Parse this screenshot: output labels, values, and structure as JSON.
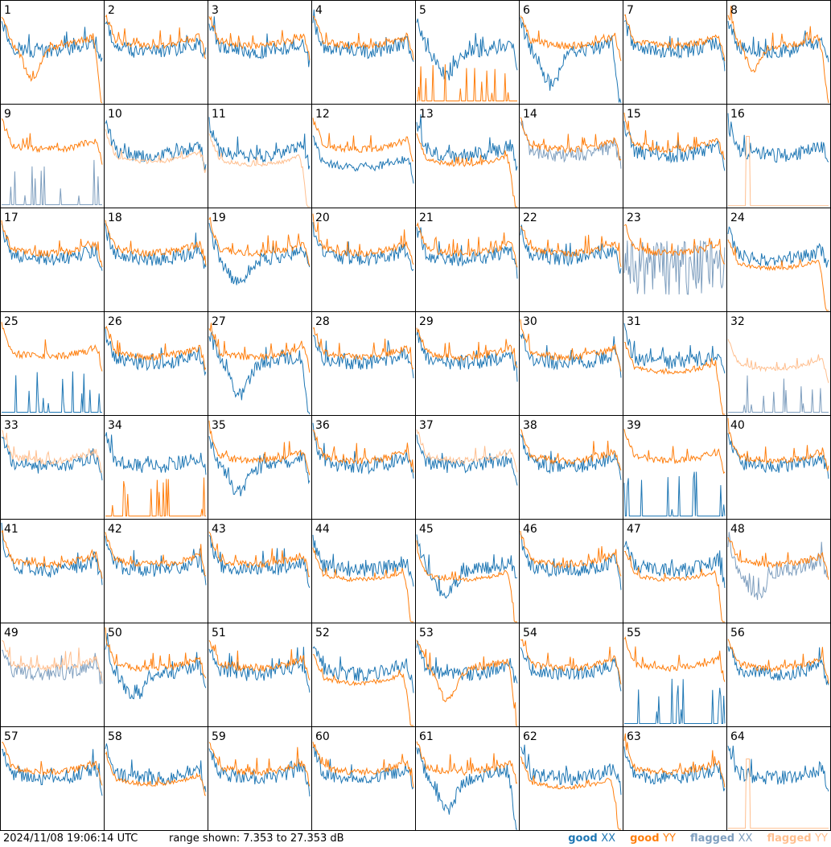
{
  "chart_data": {
    "type": "line",
    "panel_count": 64,
    "panel_labels": [
      "1",
      "2",
      "3",
      "4",
      "5",
      "6",
      "7",
      "8",
      "9",
      "10",
      "11",
      "12",
      "13",
      "14",
      "15",
      "16",
      "17",
      "18",
      "19",
      "20",
      "21",
      "22",
      "23",
      "24",
      "25",
      "26",
      "27",
      "28",
      "29",
      "30",
      "31",
      "32",
      "33",
      "34",
      "35",
      "36",
      "37",
      "38",
      "39",
      "40",
      "41",
      "42",
      "43",
      "44",
      "45",
      "46",
      "47",
      "48",
      "49",
      "50",
      "51",
      "52",
      "53",
      "54",
      "55",
      "56",
      "57",
      "58",
      "59",
      "60",
      "61",
      "62",
      "63",
      "64"
    ],
    "range_db": [
      7.353,
      27.353
    ],
    "timestamp": "2024/11/08 19:06:14 UTC",
    "range_text": "range shown: 7.353 to 27.353 dB",
    "grid": false,
    "legend_placement": "bottom-right",
    "legend": [
      {
        "status": "good",
        "pol": "XX",
        "color": "#1f77b4"
      },
      {
        "status": "good",
        "pol": "YY",
        "color": "#ff7f0e"
      },
      {
        "status": "flagged",
        "pol": "XX",
        "color": "#7f9fbf"
      },
      {
        "status": "flagged",
        "pol": "YY",
        "color": "#ffbf8f"
      }
    ],
    "panels": {
      "1": {
        "xx": {
          "f": "good",
          "s": "normal"
        },
        "yy": {
          "f": "good",
          "s": "dip_high_drop"
        }
      },
      "5": {
        "xx": {
          "f": "good",
          "s": "dip"
        },
        "yy": {
          "f": "good",
          "s": "spikes"
        }
      },
      "6": {
        "xx": {
          "f": "good",
          "s": "dip_high_drop"
        },
        "yy": {
          "f": "good",
          "s": "normal"
        }
      },
      "7": {
        "xx": {
          "f": "good",
          "s": "normal"
        },
        "yy": {
          "f": "good",
          "s": "normal"
        }
      },
      "8": {
        "xx": {
          "f": "good",
          "s": "normal"
        },
        "yy": {
          "f": "good",
          "s": "dip_drop"
        }
      },
      "9": {
        "xx": {
          "f": "flagged",
          "s": "spikes"
        },
        "yy": {
          "f": "good",
          "s": "normal"
        }
      },
      "10": {
        "xx": {
          "f": "good",
          "s": "normal"
        },
        "yy": {
          "f": "flagged",
          "s": "low"
        }
      },
      "11": {
        "xx": {
          "f": "good",
          "s": "normal"
        },
        "yy": {
          "f": "flagged",
          "s": "low_drop"
        }
      },
      "12": {
        "xx": {
          "f": "good",
          "s": "low"
        },
        "yy": {
          "f": "good",
          "s": "normal"
        }
      },
      "13": {
        "xx": {
          "f": "good",
          "s": "normal"
        },
        "yy": {
          "f": "good",
          "s": "low_drop"
        }
      },
      "14": {
        "xx": {
          "f": "flagged",
          "s": "normal"
        },
        "yy": {
          "f": "good",
          "s": "normal"
        }
      },
      "16": {
        "xx": {
          "f": "good",
          "s": "normal"
        },
        "yy": {
          "f": "flagged",
          "s": "flat_low"
        }
      },
      "19": {
        "xx": {
          "f": "good",
          "s": "dip"
        },
        "yy": {
          "f": "good",
          "s": "normal"
        }
      },
      "23": {
        "xx": {
          "f": "flagged",
          "s": "noise"
        },
        "yy": {
          "f": "good",
          "s": "normal"
        }
      },
      "24": {
        "xx": {
          "f": "good",
          "s": "normal"
        },
        "yy": {
          "f": "good",
          "s": "low_drop"
        }
      },
      "25": {
        "xx": {
          "f": "good",
          "s": "spikes"
        },
        "yy": {
          "f": "good",
          "s": "normal"
        }
      },
      "27": {
        "xx": {
          "f": "good",
          "s": "dip_high_drop"
        },
        "yy": {
          "f": "good",
          "s": "normal"
        }
      },
      "31": {
        "xx": {
          "f": "good",
          "s": "normal"
        },
        "yy": {
          "f": "good",
          "s": "low_drop"
        }
      },
      "32": {
        "xx": {
          "f": "flagged",
          "s": "spikes"
        },
        "yy": {
          "f": "flagged",
          "s": "low"
        }
      },
      "33": {
        "xx": {
          "f": "good",
          "s": "normal"
        },
        "yy": {
          "f": "flagged",
          "s": "normal"
        }
      },
      "34": {
        "xx": {
          "f": "good",
          "s": "normal"
        },
        "yy": {
          "f": "good",
          "s": "spikes"
        }
      },
      "35": {
        "xx": {
          "f": "good",
          "s": "dip"
        },
        "yy": {
          "f": "good",
          "s": "normal"
        }
      },
      "37": {
        "xx": {
          "f": "good",
          "s": "normal"
        },
        "yy": {
          "f": "flagged",
          "s": "normal"
        }
      },
      "39": {
        "xx": {
          "f": "good",
          "s": "spikes"
        },
        "yy": {
          "f": "good",
          "s": "normal"
        }
      },
      "44": {
        "xx": {
          "f": "good",
          "s": "normal"
        },
        "yy": {
          "f": "good",
          "s": "low_drop"
        }
      },
      "45": {
        "xx": {
          "f": "good",
          "s": "dip"
        },
        "yy": {
          "f": "good",
          "s": "low_drop"
        }
      },
      "47": {
        "xx": {
          "f": "good",
          "s": "normal"
        },
        "yy": {
          "f": "good",
          "s": "low_drop"
        }
      },
      "48": {
        "xx": {
          "f": "flagged",
          "s": "dip"
        },
        "yy": {
          "f": "good",
          "s": "normal"
        }
      },
      "49": {
        "xx": {
          "f": "flagged",
          "s": "normal"
        },
        "yy": {
          "f": "flagged",
          "s": "normal"
        }
      },
      "50": {
        "xx": {
          "f": "good",
          "s": "dip"
        },
        "yy": {
          "f": "good",
          "s": "normal"
        }
      },
      "52": {
        "xx": {
          "f": "good",
          "s": "normal"
        },
        "yy": {
          "f": "good",
          "s": "low_drop"
        }
      },
      "53": {
        "xx": {
          "f": "good",
          "s": "normal"
        },
        "yy": {
          "f": "good",
          "s": "dip_high_drop"
        }
      },
      "55": {
        "xx": {
          "f": "good",
          "s": "spikes"
        },
        "yy": {
          "f": "good",
          "s": "normal"
        }
      },
      "56": {
        "xx": {
          "f": "good",
          "s": "normal"
        },
        "yy": {
          "f": "good",
          "s": "normal"
        }
      },
      "58": {
        "xx": {
          "f": "good",
          "s": "normal"
        },
        "yy": {
          "f": "good",
          "s": "low"
        }
      },
      "61": {
        "xx": {
          "f": "good",
          "s": "dip_high_drop"
        },
        "yy": {
          "f": "good",
          "s": "normal"
        }
      },
      "62": {
        "xx": {
          "f": "good",
          "s": "normal"
        },
        "yy": {
          "f": "good",
          "s": "low_drop"
        }
      },
      "64": {
        "xx": {
          "f": "good",
          "s": "normal"
        },
        "yy": {
          "f": "flagged",
          "s": "flat_low"
        }
      }
    }
  }
}
